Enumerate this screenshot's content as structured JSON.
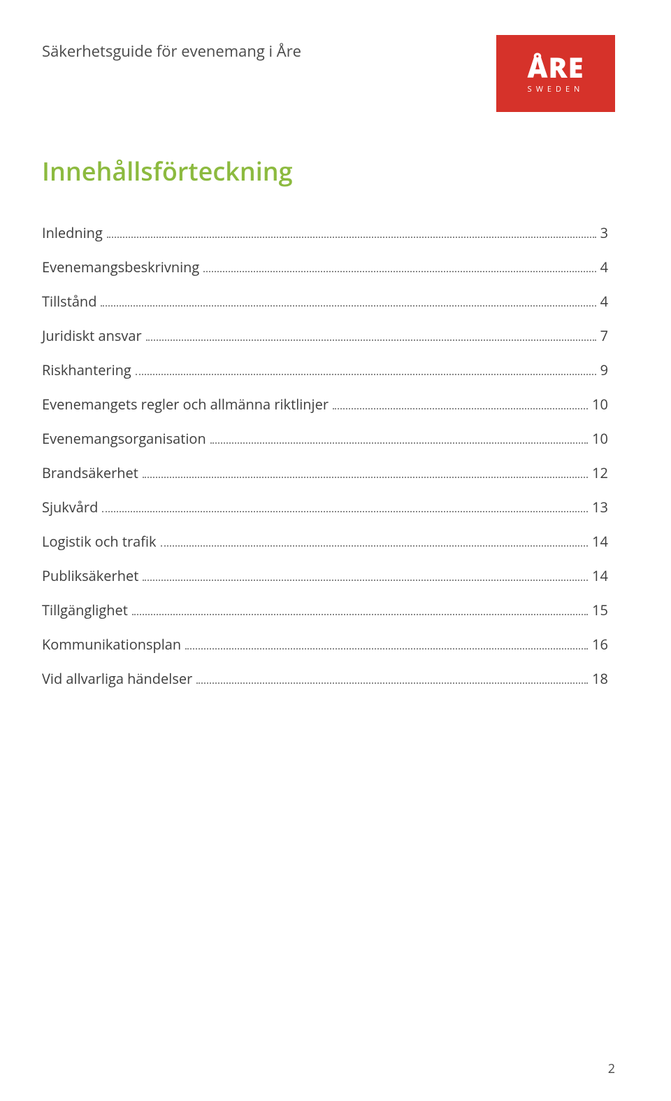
{
  "header": {
    "text": "Säkerhetsguide för evenemang i Åre"
  },
  "logo": {
    "main": "ÅRE",
    "sub": "SWEDEN",
    "bg_color": "#d6322a",
    "text_color": "#ffffff"
  },
  "title": "Innehållsförteckning",
  "title_color": "#8cba3f",
  "toc": [
    {
      "label": "Inledning",
      "page": "3"
    },
    {
      "label": "Evenemangsbeskrivning",
      "page": "4"
    },
    {
      "label": "Tillstånd",
      "page": "4"
    },
    {
      "label": "Juridiskt ansvar",
      "page": "7"
    },
    {
      "label": "Riskhantering",
      "page": "9"
    },
    {
      "label": "Evenemangets regler och allmänna riktlinjer",
      "page": "10"
    },
    {
      "label": "Evenemangsorganisation",
      "page": "10"
    },
    {
      "label": "Brandsäkerhet",
      "page": "12"
    },
    {
      "label": "Sjukvård",
      "page": "13"
    },
    {
      "label": "Logistik och trafik",
      "page": "14"
    },
    {
      "label": "Publiksäkerhet",
      "page": "14"
    },
    {
      "label": "Tillgänglighet",
      "page": "15"
    },
    {
      "label": "Kommunikationsplan",
      "page": "16"
    },
    {
      "label": "Vid allvarliga händelser",
      "page": "18"
    }
  ],
  "page_number": "2",
  "typography": {
    "header_fontsize": 22,
    "title_fontsize": 36,
    "toc_fontsize": 20,
    "body_color": "#3a3a3a"
  }
}
